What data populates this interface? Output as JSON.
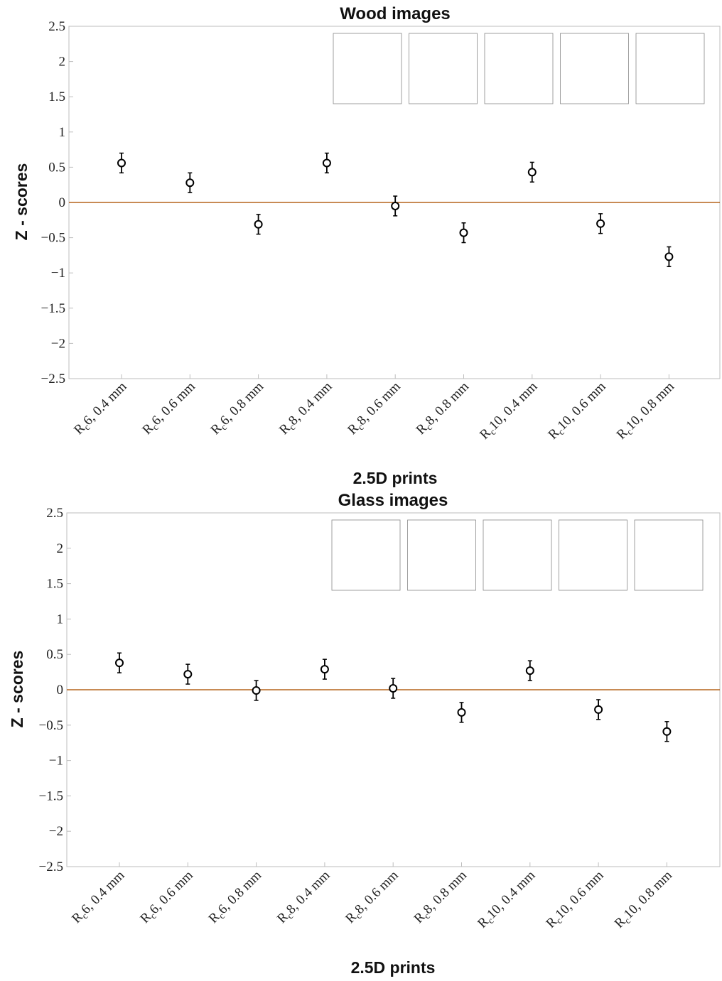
{
  "chart_data": [
    {
      "type": "scatter",
      "title": "Wood images",
      "xlabel": "2.5D prints",
      "ylabel": "Z - scores",
      "ylim": [
        -2.5,
        2.5
      ],
      "yticks": [
        "2.5",
        "2",
        "1.5",
        "1",
        "0.5",
        "0",
        "−0.5",
        "−1",
        "−1.5",
        "−2",
        "−2.5"
      ],
      "categories": [
        "Rc6, 0.4 mm",
        "Rc6, 0.6 mm",
        "Rc6, 0.8 mm",
        "Rc8, 0.4 mm",
        "Rc8, 0.6 mm",
        "Rc8, 0.8 mm",
        "Rc10, 0.4 mm",
        "Rc10, 0.6 mm",
        "Rc10, 0.8 mm"
      ],
      "values": [
        0.56,
        0.28,
        -0.31,
        0.56,
        -0.05,
        -0.43,
        0.43,
        -0.3,
        -0.77
      ],
      "errors": [
        0.14,
        0.14,
        0.14,
        0.14,
        0.14,
        0.14,
        0.14,
        0.14,
        0.14
      ],
      "reference_line": 0,
      "grid": false,
      "thumbnails": [
        "wood-diamond",
        "wood-herringbone",
        "wood-hexagon",
        "wood-parquet",
        "wood-hex-tiles"
      ]
    },
    {
      "type": "scatter",
      "title": "Glass images",
      "xlabel": "2.5D prints",
      "ylabel": "Z - scores",
      "ylim": [
        -2.5,
        2.5
      ],
      "yticks": [
        "2.5",
        "2",
        "1.5",
        "1",
        "0.5",
        "0",
        "−0.5",
        "−1",
        "−1.5",
        "−2",
        "−2.5"
      ],
      "categories": [
        "Rc6, 0.4 mm",
        "Rc6, 0.6 mm",
        "Rc6, 0.8 mm",
        "Rc8, 0.4 mm",
        "Rc8, 0.6 mm",
        "Rc8, 0.8 mm",
        "Rc10, 0.4 mm",
        "Rc10, 0.6 mm",
        "Rc10, 0.8 mm"
      ],
      "values": [
        0.38,
        0.22,
        -0.01,
        0.29,
        0.02,
        -0.32,
        0.27,
        -0.28,
        -0.59
      ],
      "errors": [
        0.14,
        0.14,
        0.14,
        0.14,
        0.14,
        0.14,
        0.14,
        0.14,
        0.14
      ],
      "reference_line": 0,
      "grid": false,
      "thumbnails": [
        "glass-grid",
        "glass-frosted",
        "glass-navy",
        "glass-lattice",
        "glass-harlequin"
      ]
    }
  ],
  "colors": {
    "marker": "#000000",
    "reference_line": "#b5651d",
    "axis": "#bdbdbd",
    "text": "#222222"
  }
}
